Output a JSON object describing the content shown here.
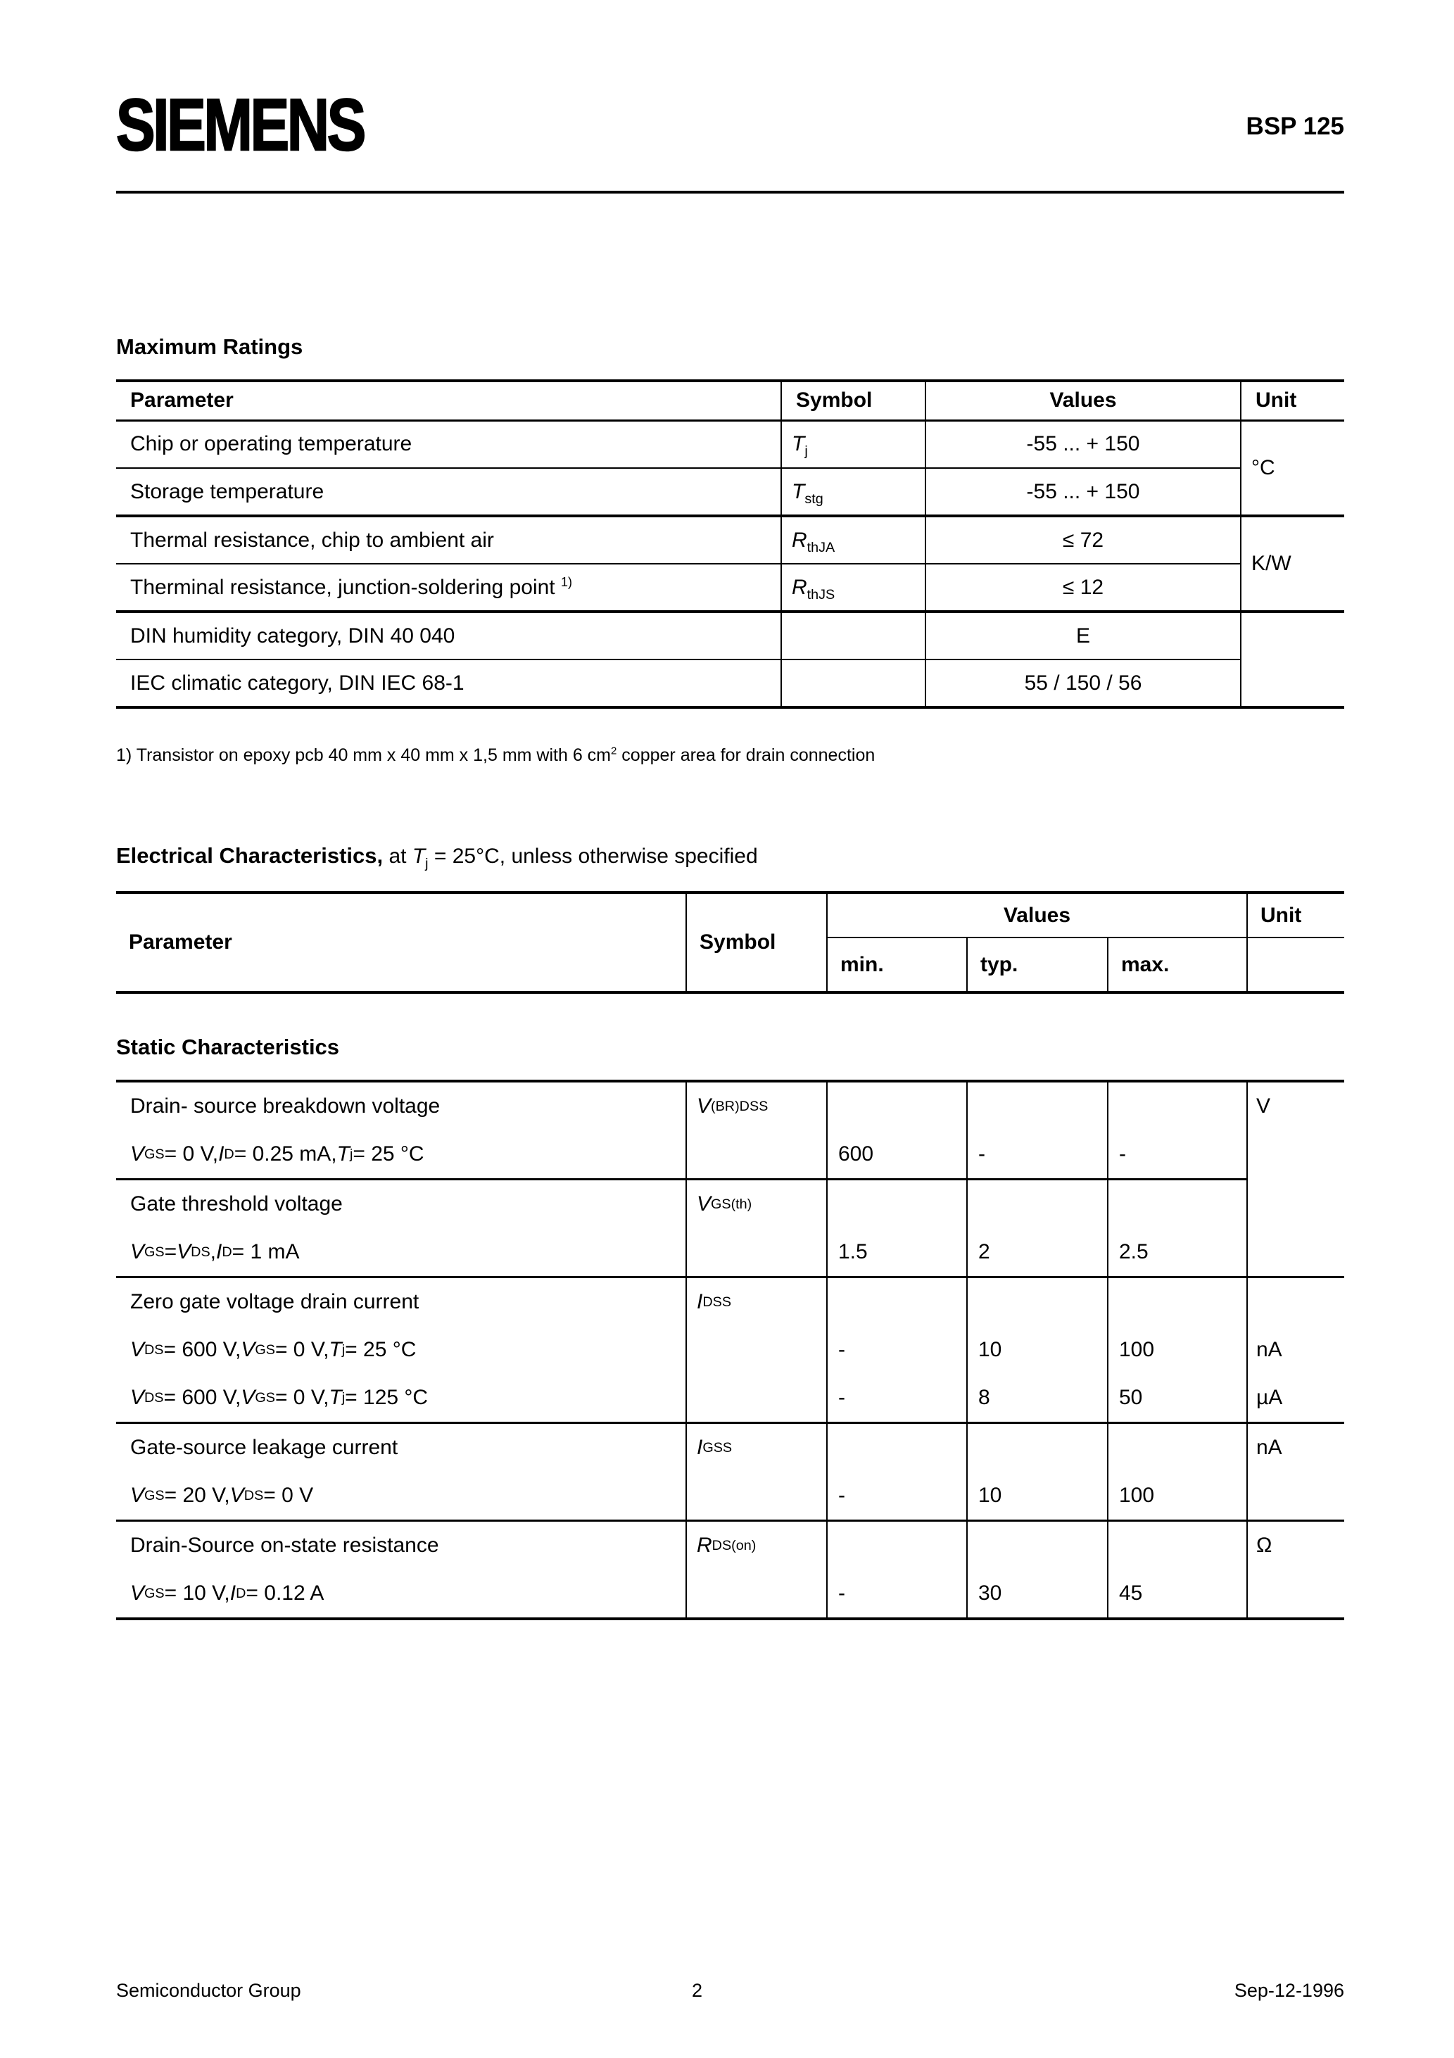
{
  "page": {
    "brand": "SIEMENS",
    "part": "BSP 125",
    "footer": {
      "left": "Semiconductor Group",
      "page_number": "2",
      "date": "Sep-12-1996"
    }
  },
  "max_ratings": {
    "title": "Maximum Ratings",
    "headers": {
      "parameter": "Parameter",
      "symbol": "Symbol",
      "values": "Values",
      "unit": "Unit"
    },
    "rows": [
      {
        "parameter": "Chip or operating temperature",
        "symbol": "*T*_{j}",
        "value": "-55 ... + 150",
        "unit": "°C"
      },
      {
        "parameter": "Storage temperature",
        "symbol": "*T*_{stg}",
        "value": "-55 ... + 150"
      },
      {
        "parameter": "Thermal resistance, chip to ambient air",
        "symbol": "*R*_{thJA}",
        "value": "≤ 72",
        "unit": "K/W"
      },
      {
        "parameter": "Therminal resistance, junction-soldering point ^{1)}",
        "symbol": "*R*_{thJS}",
        "value": "≤ 12"
      },
      {
        "parameter": "DIN humidity category, DIN 40 040",
        "symbol": "",
        "value": "E",
        "unit": ""
      },
      {
        "parameter": "IEC climatic category, DIN IEC 68-1",
        "symbol": "",
        "value": "55 / 150 / 56"
      }
    ]
  },
  "footnote": "1) Transistor on epoxy pcb 40 mm x 40 mm x 1,5 mm with 6 cm^{2} copper area for drain connection",
  "electrical": {
    "title_bold": "Electrical Characteristics,",
    "title_rest": " at *T*_{j} = 25°C, unless otherwise specified",
    "headers": {
      "parameter": "Parameter",
      "symbol": "Symbol",
      "values": "Values",
      "min": "min.",
      "typ": "typ.",
      "max": "max.",
      "unit": "Unit"
    }
  },
  "static_characteristics": {
    "title": "Static Characteristics",
    "groups": [
      {
        "name": "Drain- source breakdown voltage",
        "symbol": "*V*_{(BR)DSS}",
        "unit": "V",
        "lines": [
          {
            "cond": "*V*_{GS} = 0 V, *I*_{D} = 0.25 mA, *T*_{j} = 25 °C",
            "min": "600",
            "typ": "-",
            "max": "-"
          }
        ]
      },
      {
        "name": "Gate threshold voltage",
        "symbol": "*V*_{GS(th)}",
        "lines": [
          {
            "cond": "*V*_{GS}=*V*_{DS}, *I*_{D} = 1 mA",
            "min": "1.5",
            "typ": "2",
            "max": "2.5"
          }
        ]
      },
      {
        "name": "Zero gate voltage drain current",
        "symbol": "*I*_{DSS}",
        "unit": "",
        "lines": [
          {
            "cond": "*V*_{DS} = 600 V, *V*_{GS} = 0 V, *T*_{j} = 25 °C",
            "min": "-",
            "typ": "10",
            "max": "100",
            "unit": "nA"
          },
          {
            "cond": "*V*_{DS} = 600 V, *V*_{GS} = 0 V, *T*_{j} = 125 °C",
            "min": "-",
            "typ": "8",
            "max": "50",
            "unit": "µA"
          }
        ]
      },
      {
        "name": "Gate-source leakage current",
        "symbol": "*I*_{GSS}",
        "unit": "nA",
        "lines": [
          {
            "cond": "*V*_{GS} = 20 V, *V*_{DS} = 0 V",
            "min": "-",
            "typ": "10",
            "max": "100"
          }
        ]
      },
      {
        "name": "Drain-Source on-state resistance",
        "symbol": "*R*_{DS(on)}",
        "unit": "Ω",
        "lines": [
          {
            "cond": "*V*_{GS} = 10 V, *I*_{D} = 0.12 A",
            "min": "-",
            "typ": "30",
            "max": "45"
          }
        ]
      }
    ]
  }
}
